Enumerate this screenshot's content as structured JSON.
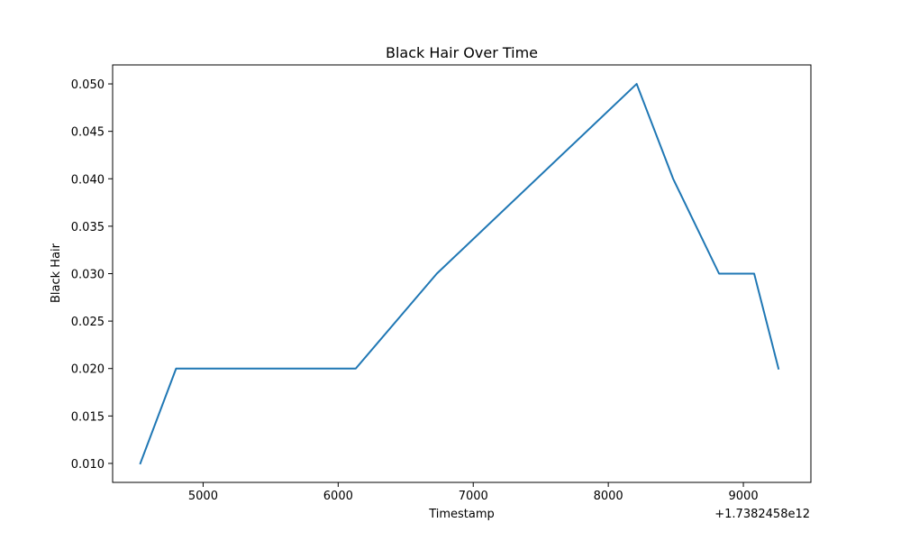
{
  "chart_data": {
    "type": "line",
    "title": "Black Hair Over Time",
    "xlabel": "Timestamp",
    "ylabel": "Black Hair",
    "x_offset_label": "+1.7382458e12",
    "x_offset": 1738245800000,
    "x_ticks": [
      5000,
      6000,
      7000,
      8000,
      9000
    ],
    "y_ticks": [
      0.01,
      0.015,
      0.02,
      0.025,
      0.03,
      0.035,
      0.04,
      0.045,
      0.05
    ],
    "xlim": [
      4330,
      9500
    ],
    "ylim": [
      0.008,
      0.052
    ],
    "grid": false,
    "line_color": "#1f77b4",
    "series": [
      {
        "x": [
          4535,
          4800,
          6130,
          6730,
          8210,
          8480,
          8820,
          9080,
          9260
        ],
        "y": [
          0.01,
          0.02,
          0.02,
          0.03,
          0.05,
          0.04,
          0.03,
          0.03,
          0.02
        ]
      }
    ]
  }
}
